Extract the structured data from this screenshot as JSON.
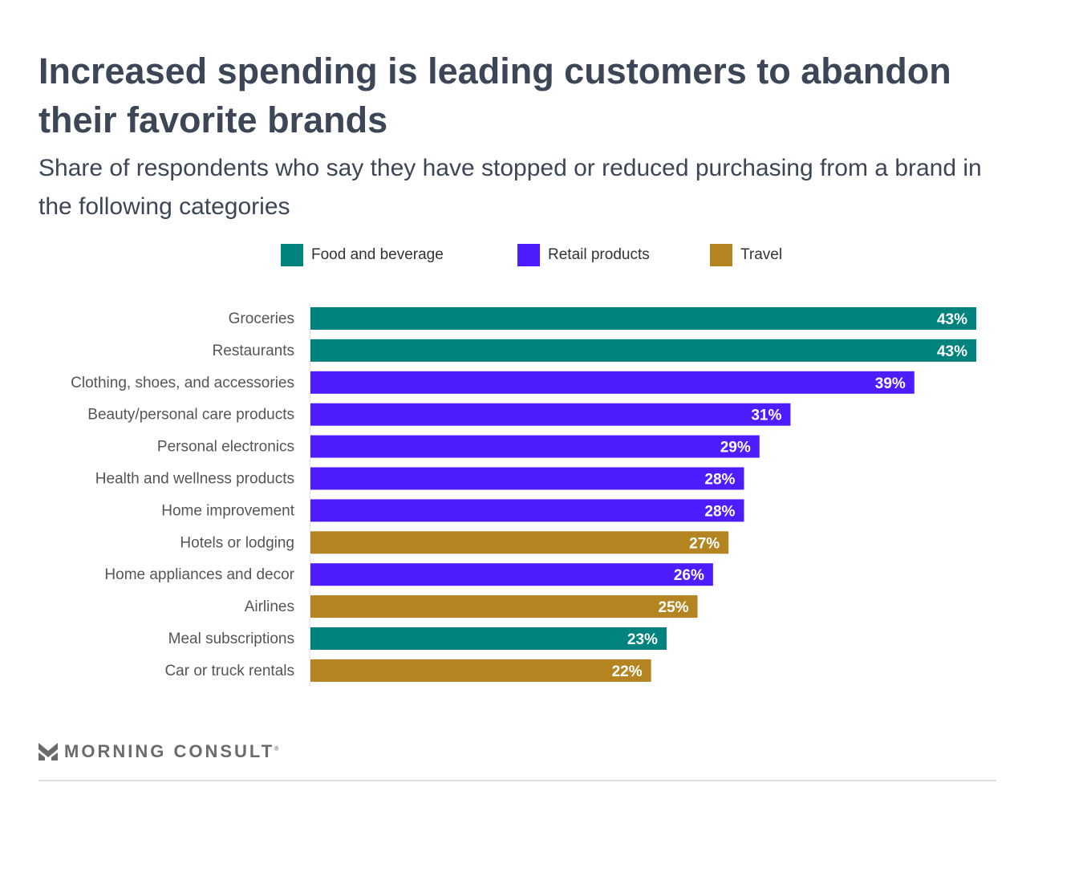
{
  "chart_data": {
    "type": "bar",
    "orientation": "horizontal",
    "title": "Increased spending is leading customers to abandon their favorite brands",
    "subtitle": "Share of respondents who say they have stopped or reduced purchasing from a brand in the following categories",
    "legend": [
      {
        "name": "Food and beverage",
        "color": "#00837f"
      },
      {
        "name": "Retail products",
        "color": "#4f1bff"
      },
      {
        "name": "Travel",
        "color": "#b38420"
      }
    ],
    "legend_position": "top",
    "categories": [
      "Groceries",
      "Restaurants",
      "Clothing, shoes, and accessories",
      "Beauty/personal care products",
      "Personal electronics",
      "Health and wellness products",
      "Home improvement",
      "Hotels or lodging",
      "Home appliances and decor",
      "Airlines",
      "Meal subscriptions",
      "Car or truck rentals"
    ],
    "values": [
      43,
      43,
      39,
      31,
      29,
      28,
      28,
      27,
      26,
      25,
      23,
      22
    ],
    "labels": [
      "43%",
      "43%",
      "39%",
      "31%",
      "29%",
      "28%",
      "28%",
      "27%",
      "26%",
      "25%",
      "23%",
      "22%"
    ],
    "groups": [
      "Food and beverage",
      "Food and beverage",
      "Retail products",
      "Retail products",
      "Retail products",
      "Retail products",
      "Retail products",
      "Travel",
      "Retail products",
      "Travel",
      "Food and beverage",
      "Travel"
    ],
    "xlim": [
      0,
      43
    ],
    "grid": false
  },
  "footer": {
    "brand": "MORNING CONSULT",
    "mark": "®"
  }
}
